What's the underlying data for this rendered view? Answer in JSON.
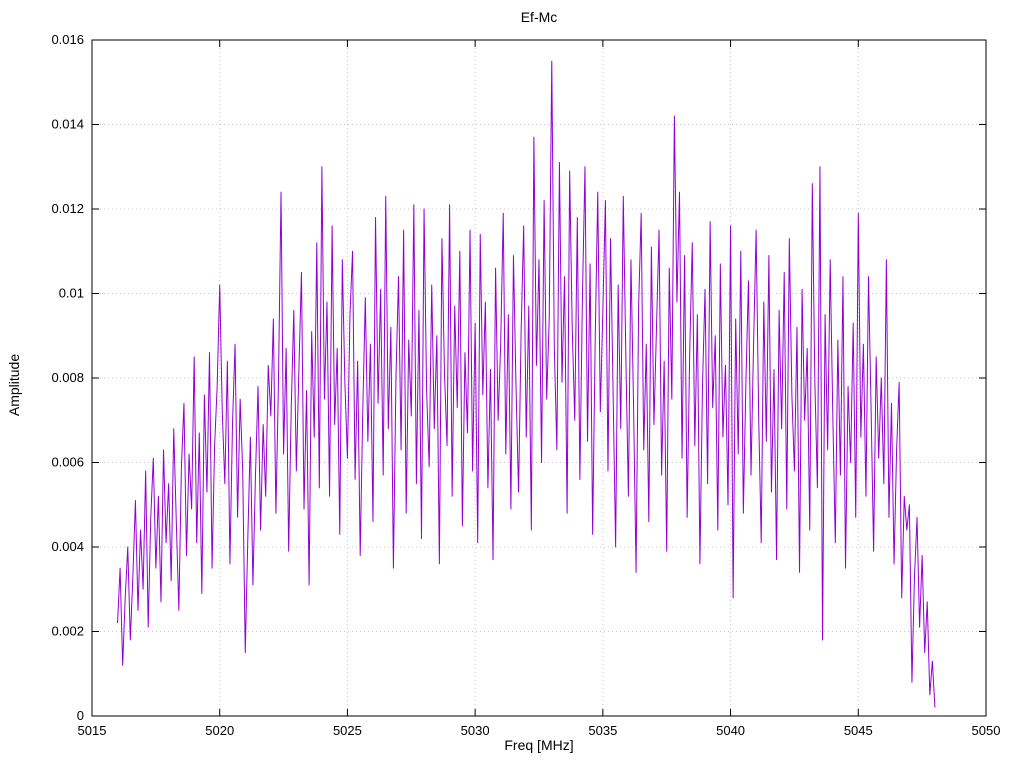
{
  "chart_data": {
    "type": "line",
    "title": "Ef-Mc",
    "xlabel": "Freq [MHz]",
    "ylabel": "Amplitude",
    "xlim": [
      5015,
      5050
    ],
    "ylim": [
      0,
      0.016
    ],
    "xticks": [
      5015,
      5020,
      5025,
      5030,
      5035,
      5040,
      5045,
      5050
    ],
    "xtick_labels": [
      "5015",
      "5020",
      "5025",
      "5030",
      "5035",
      "5040",
      "5045",
      "5050"
    ],
    "yticks": [
      0,
      0.002,
      0.004,
      0.006,
      0.008,
      0.01,
      0.012,
      0.014,
      0.016
    ],
    "ytick_labels": [
      "0",
      "0.002",
      "0.004",
      "0.006",
      "0.008",
      "0.01",
      "0.012",
      "0.014",
      "0.016"
    ],
    "grid": true,
    "legend": false,
    "line_color": "#9400d3",
    "grid_color": "#c8c8c8",
    "border_color": "#000000",
    "x_start": 5016.0,
    "x_step": 0.1,
    "values": [
      0.0022,
      0.0035,
      0.0012,
      0.0028,
      0.004,
      0.0018,
      0.0033,
      0.0051,
      0.0025,
      0.0044,
      0.003,
      0.0058,
      0.0021,
      0.0047,
      0.0061,
      0.0035,
      0.0052,
      0.0027,
      0.0063,
      0.0041,
      0.0055,
      0.0032,
      0.0068,
      0.0046,
      0.0025,
      0.0059,
      0.0074,
      0.0038,
      0.0062,
      0.0049,
      0.0085,
      0.0041,
      0.0067,
      0.0029,
      0.0076,
      0.0053,
      0.0086,
      0.0035,
      0.0064,
      0.0078,
      0.0102,
      0.0072,
      0.0055,
      0.0084,
      0.0036,
      0.0069,
      0.0088,
      0.0047,
      0.0075,
      0.0058,
      0.0015,
      0.0042,
      0.0066,
      0.0031,
      0.0057,
      0.0078,
      0.0044,
      0.0069,
      0.0052,
      0.0083,
      0.0071,
      0.0094,
      0.0048,
      0.0079,
      0.0124,
      0.0062,
      0.0087,
      0.0039,
      0.0073,
      0.0096,
      0.0058,
      0.0082,
      0.0105,
      0.0049,
      0.0077,
      0.0031,
      0.0091,
      0.0066,
      0.0112,
      0.0054,
      0.013,
      0.0075,
      0.0098,
      0.0052,
      0.0116,
      0.0069,
      0.0087,
      0.0043,
      0.0108,
      0.0079,
      0.0061,
      0.0095,
      0.011,
      0.0056,
      0.0084,
      0.0038,
      0.0072,
      0.0099,
      0.0065,
      0.0088,
      0.0046,
      0.0118,
      0.0074,
      0.0101,
      0.0057,
      0.0123,
      0.0068,
      0.0092,
      0.0035,
      0.008,
      0.0104,
      0.0063,
      0.0115,
      0.0048,
      0.0089,
      0.0071,
      0.0121,
      0.0055,
      0.0096,
      0.0042,
      0.012,
      0.0077,
      0.0059,
      0.0102,
      0.0068,
      0.009,
      0.0036,
      0.0113,
      0.0081,
      0.0064,
      0.0121,
      0.0052,
      0.0097,
      0.0073,
      0.011,
      0.0045,
      0.0086,
      0.0067,
      0.0115,
      0.0058,
      0.0093,
      0.0041,
      0.0114,
      0.0076,
      0.0098,
      0.0054,
      0.0082,
      0.0037,
      0.0106,
      0.007,
      0.0088,
      0.0119,
      0.0062,
      0.0095,
      0.0049,
      0.0109,
      0.0078,
      0.0053,
      0.0091,
      0.0116,
      0.0066,
      0.0097,
      0.0044,
      0.0137,
      0.0083,
      0.0108,
      0.006,
      0.0122,
      0.0075,
      0.0094,
      0.0155,
      0.0087,
      0.0063,
      0.0131,
      0.0079,
      0.0104,
      0.0048,
      0.0129,
      0.0092,
      0.007,
      0.0118,
      0.0056,
      0.0099,
      0.013,
      0.0065,
      0.0107,
      0.0043,
      0.0089,
      0.0124,
      0.0072,
      0.0096,
      0.0122,
      0.0058,
      0.0113,
      0.0077,
      0.004,
      0.0102,
      0.0068,
      0.0123,
      0.0085,
      0.0052,
      0.0108,
      0.0074,
      0.0034,
      0.0097,
      0.0119,
      0.0063,
      0.0088,
      0.0046,
      0.0111,
      0.0069,
      0.0092,
      0.0115,
      0.0057,
      0.0084,
      0.0039,
      0.0106,
      0.0075,
      0.0142,
      0.0098,
      0.0124,
      0.0061,
      0.0109,
      0.0047,
      0.0086,
      0.0112,
      0.0064,
      0.0095,
      0.0036,
      0.0078,
      0.0101,
      0.0055,
      0.0117,
      0.0073,
      0.009,
      0.0044,
      0.0107,
      0.0066,
      0.0083,
      0.005,
      0.0116,
      0.0028,
      0.0094,
      0.0062,
      0.011,
      0.0048,
      0.0079,
      0.0103,
      0.0057,
      0.0088,
      0.0115,
      0.0071,
      0.0041,
      0.0098,
      0.0065,
      0.0109,
      0.0053,
      0.0082,
      0.0037,
      0.0096,
      0.0068,
      0.0105,
      0.0049,
      0.0113,
      0.0076,
      0.0058,
      0.0092,
      0.0034,
      0.0101,
      0.007,
      0.0087,
      0.0044,
      0.0126,
      0.0079,
      0.0054,
      0.013,
      0.0018,
      0.0095,
      0.0063,
      0.0108,
      0.0072,
      0.0041,
      0.0089,
      0.0057,
      0.0104,
      0.0035,
      0.0078,
      0.006,
      0.0093,
      0.0047,
      0.0119,
      0.0066,
      0.0088,
      0.0052,
      0.0104,
      0.0073,
      0.0039,
      0.0085,
      0.0061,
      0.008,
      0.0055,
      0.0108,
      0.0047,
      0.0074,
      0.0036,
      0.0063,
      0.0079,
      0.0028,
      0.0052,
      0.0044,
      0.005,
      0.0008,
      0.0033,
      0.0047,
      0.0021,
      0.0038,
      0.0015,
      0.0027,
      0.0005,
      0.0013,
      0.0002
    ]
  }
}
